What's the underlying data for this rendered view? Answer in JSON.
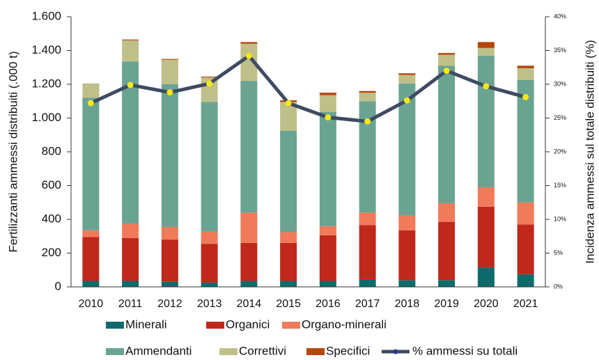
{
  "chart_data": {
    "type": "bar",
    "stacked": true,
    "ylabel": "Fertilizzanti ammessi distribuiti (.000 t)",
    "y2label": "Incidenza ammessi sul totale distribuiti (%)",
    "categories": [
      "2010",
      "2011",
      "2012",
      "2013",
      "2014",
      "2015",
      "2016",
      "2017",
      "2018",
      "2019",
      "2020",
      "2021"
    ],
    "series": [
      {
        "name": "Minerali",
        "color": "#0f6b6b",
        "values": [
          35,
          35,
          30,
          25,
          35,
          35,
          35,
          45,
          40,
          40,
          115,
          75
        ]
      },
      {
        "name": "Organici",
        "color": "#c0281c",
        "values": [
          260,
          255,
          250,
          230,
          225,
          225,
          270,
          320,
          295,
          345,
          360,
          295
        ]
      },
      {
        "name": "Organo-minerali",
        "color": "#f07a5a",
        "values": [
          40,
          85,
          75,
          75,
          180,
          65,
          55,
          75,
          90,
          110,
          115,
          130
        ]
      },
      {
        "name": "Ammendanti",
        "color": "#6aa391",
        "values": [
          785,
          960,
          845,
          765,
          780,
          600,
          675,
          660,
          780,
          815,
          780,
          725
        ]
      },
      {
        "name": "Correttivi",
        "color": "#bfbf8a",
        "values": [
          85,
          125,
          145,
          145,
          220,
          170,
          100,
          50,
          50,
          65,
          45,
          70
        ]
      },
      {
        "name": "Specifici",
        "color": "#b5470d",
        "values": [
          0,
          5,
          5,
          5,
          10,
          10,
          15,
          10,
          10,
          10,
          35,
          15
        ]
      },
      {
        "name": "% ammessi su totali",
        "type": "line",
        "axis": "y2",
        "color": "#3f4a63",
        "marker_color": "#f5e61a",
        "values": [
          27.2,
          29.9,
          28.8,
          30.1,
          34.2,
          27.2,
          25.1,
          24.5,
          27.6,
          32.0,
          29.7,
          28.1
        ]
      }
    ],
    "ylim": [
      0,
      1600
    ],
    "yticks": [
      0,
      200,
      400,
      600,
      800,
      {
        "value": 1000,
        "label": "1.000"
      },
      {
        "value": 1200,
        "label": "1.200"
      },
      {
        "value": 1400,
        "label": "1.400"
      },
      {
        "value": 1600,
        "label": "1.600"
      }
    ],
    "y2lim": [
      0,
      40
    ],
    "y2ticks": [
      {
        "value": 0,
        "label": "0%"
      },
      {
        "value": 5,
        "label": "5%"
      },
      {
        "value": 10,
        "label": "10%"
      },
      {
        "value": 15,
        "label": "15%"
      },
      {
        "value": 20,
        "label": "20%"
      },
      {
        "value": 25,
        "label": "25%"
      },
      {
        "value": 30,
        "label": "30%"
      },
      {
        "value": 35,
        "label": "35%"
      },
      {
        "value": 40,
        "label": "40%"
      }
    ]
  }
}
